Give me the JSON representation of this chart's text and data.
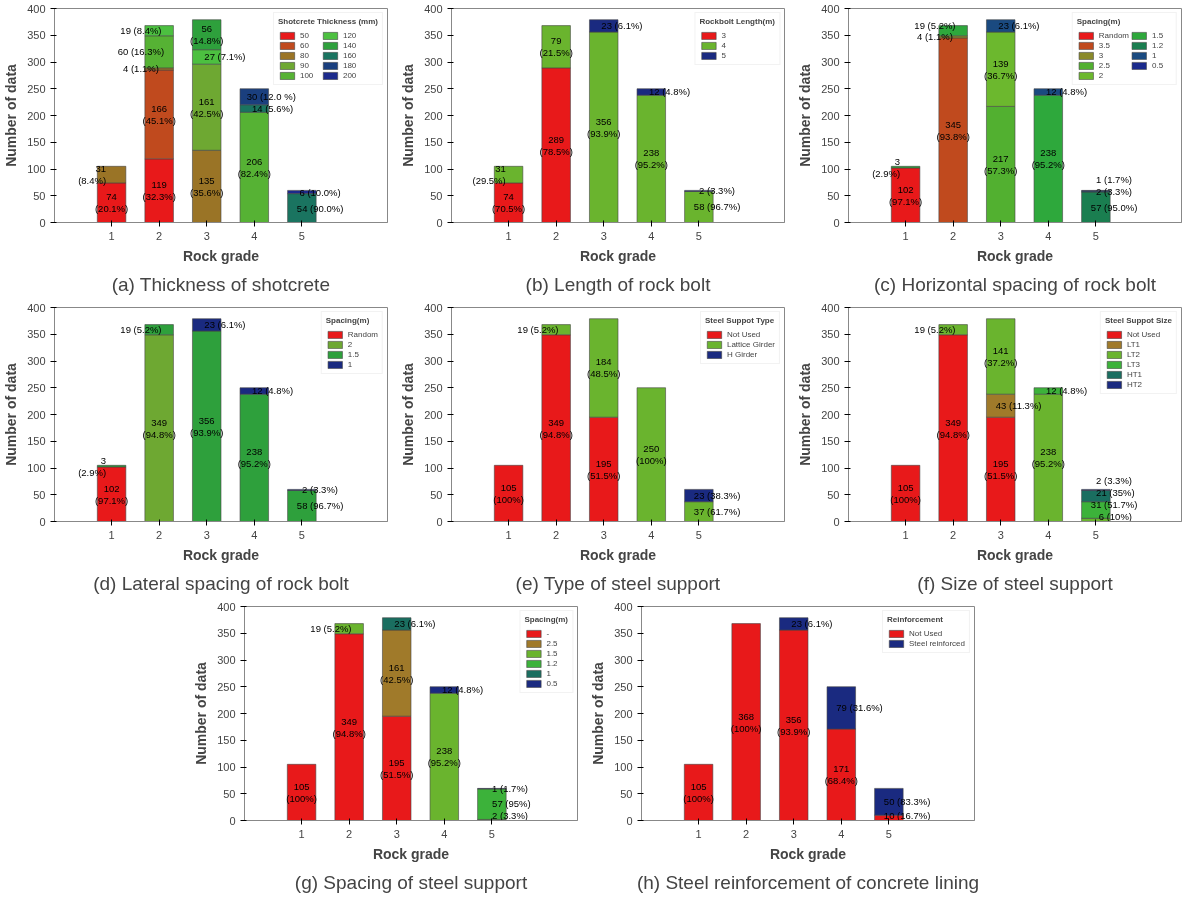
{
  "chart_data": [
    {
      "type": "bar",
      "stacked": true,
      "title": "(a) Thickness of shotcrete",
      "xlabel": "Rock grade",
      "ylabel": "Number of data",
      "legend_title": "Shotcrete Thickness (mm)",
      "legend": "top right",
      "categories": [
        "1",
        "2",
        "3",
        "4",
        "5"
      ],
      "ylim": [
        0,
        400
      ],
      "yticks": [
        0,
        50,
        100,
        150,
        200,
        250,
        300,
        350,
        400
      ],
      "series": [
        {
          "name": "50",
          "color": "#e8191a",
          "values": [
            74,
            119,
            null,
            null,
            null
          ],
          "value_labels": [
            "74 (20.1%)",
            "119 (32.3%)",
            null,
            null,
            null
          ]
        },
        {
          "name": "60",
          "color": "#c04a1e",
          "values": [
            null,
            166,
            null,
            null,
            null
          ],
          "value_labels": [
            null,
            "166 (45.1%)",
            null,
            null,
            null
          ]
        },
        {
          "name": "80",
          "color": "#9a7426",
          "values": [
            31,
            4,
            135,
            null,
            null
          ],
          "value_labels": [
            "31 (8.4%)",
            "4 (1.1%)",
            "135 (35.6%)",
            null,
            null
          ]
        },
        {
          "name": "90",
          "color": "#6ea832",
          "values": [
            null,
            null,
            161,
            null,
            null
          ],
          "value_labels": [
            null,
            null,
            "161 (42.5%)",
            null,
            null
          ]
        },
        {
          "name": "100",
          "color": "#56b234",
          "values": [
            null,
            60,
            null,
            206,
            null
          ],
          "value_labels": [
            null,
            "60 (16.3%)",
            null,
            "206 (82.4%)",
            null
          ]
        },
        {
          "name": "120",
          "color": "#4cc040",
          "values": [
            null,
            19,
            27,
            null,
            null
          ],
          "value_labels": [
            null,
            "19 (8.4%)",
            "27 (7.1%)",
            null,
            null
          ]
        },
        {
          "name": "140",
          "color": "#2ea03c",
          "values": [
            null,
            null,
            56,
            null,
            null
          ],
          "value_labels": [
            null,
            null,
            "56 (14.8%)",
            null,
            null
          ]
        },
        {
          "name": "160",
          "color": "#1a7460",
          "values": [
            null,
            null,
            null,
            14,
            54
          ],
          "value_labels": [
            null,
            null,
            null,
            "14 (5.6%)",
            "54 (90.0%)"
          ]
        },
        {
          "name": "180",
          "color": "#1a3f7e",
          "values": [
            null,
            null,
            null,
            30,
            null
          ],
          "value_labels": [
            null,
            null,
            null,
            "30 (12.0 %)",
            null
          ]
        },
        {
          "name": "200",
          "color": "#1c2a8c",
          "values": [
            null,
            null,
            null,
            null,
            6
          ],
          "value_labels": [
            null,
            null,
            null,
            null,
            "6 (10.0%)"
          ]
        }
      ]
    },
    {
      "type": "bar",
      "stacked": true,
      "title": "(b) Length of rock bolt",
      "xlabel": "Rock grade",
      "ylabel": "Number of data",
      "legend_title": "Rockbolt Length(m)",
      "legend": "top right",
      "categories": [
        "1",
        "2",
        "3",
        "4",
        "5"
      ],
      "ylim": [
        0,
        400
      ],
      "yticks": [
        0,
        50,
        100,
        150,
        200,
        250,
        300,
        350,
        400
      ],
      "series": [
        {
          "name": "3",
          "color": "#e8191a",
          "values": [
            74,
            289,
            null,
            null,
            null
          ],
          "value_labels": [
            "74 (70.5%)",
            "289 (78.5%)",
            null,
            null,
            null
          ]
        },
        {
          "name": "4",
          "color": "#6ab42e",
          "values": [
            31,
            79,
            356,
            238,
            58
          ],
          "value_labels": [
            "31 (29.5%)",
            "79 (21.5%)",
            "356 (93.9%)",
            "238 (95.2%)",
            "58 (96.7%)"
          ]
        },
        {
          "name": "5",
          "color": "#1a2a80",
          "values": [
            null,
            null,
            23,
            12,
            2
          ],
          "value_labels": [
            null,
            null,
            "23 (6.1%)",
            "12 (4.8%)",
            "2 (3.3%)"
          ]
        }
      ]
    },
    {
      "type": "bar",
      "stacked": true,
      "title": "(c) Horizontal spacing of rock bolt",
      "xlabel": "Rock grade",
      "ylabel": "Number of data",
      "legend_title": "Spacing(m)",
      "legend": "top right",
      "categories": [
        "1",
        "2",
        "3",
        "4",
        "5"
      ],
      "ylim": [
        0,
        400
      ],
      "yticks": [
        0,
        50,
        100,
        150,
        200,
        250,
        300,
        350,
        400
      ],
      "series": [
        {
          "name": "Random",
          "color": "#e8191a",
          "values": [
            102,
            null,
            null,
            null,
            null
          ],
          "value_labels": [
            "102 (97.1%)",
            null,
            null,
            null,
            null
          ]
        },
        {
          "name": "3.5",
          "color": "#c04a1e",
          "values": [
            null,
            345,
            null,
            null,
            null
          ],
          "value_labels": [
            null,
            "345 (93.8%)",
            null,
            null,
            null
          ]
        },
        {
          "name": "3",
          "color": "#8a8a2a",
          "values": [
            null,
            4,
            null,
            null,
            null
          ],
          "value_labels": [
            null,
            "4 (1.1%)",
            null,
            null,
            null
          ]
        },
        {
          "name": "2.5",
          "color": "#52b030",
          "values": [
            null,
            null,
            217,
            null,
            null
          ],
          "value_labels": [
            null,
            null,
            "217 (57.3%)",
            null,
            null
          ]
        },
        {
          "name": "2",
          "color": "#6cb82e",
          "values": [
            null,
            null,
            139,
            null,
            null
          ],
          "value_labels": [
            null,
            null,
            "139 (36.7%)",
            null,
            null
          ]
        },
        {
          "name": "1.5",
          "color": "#2ea83c",
          "values": [
            3,
            19,
            null,
            238,
            null
          ],
          "value_labels": [
            "3 (2.9%)",
            "19 (5.2%)",
            null,
            "238 (95.2%)",
            null
          ]
        },
        {
          "name": "1.2",
          "color": "#1a7e50",
          "values": [
            null,
            null,
            null,
            null,
            57
          ],
          "value_labels": [
            null,
            null,
            null,
            null,
            "57 (95.0%)"
          ]
        },
        {
          "name": "1",
          "color": "#1a4a80",
          "values": [
            null,
            null,
            23,
            12,
            2
          ],
          "value_labels": [
            null,
            null,
            "23 (6.1%)",
            "12 (4.8%)",
            "2 (3.3%)"
          ]
        },
        {
          "name": "0.5",
          "color": "#1a2a8c",
          "values": [
            null,
            null,
            null,
            null,
            1
          ],
          "value_labels": [
            null,
            null,
            null,
            null,
            "1 (1.7%)"
          ]
        }
      ]
    },
    {
      "type": "bar",
      "stacked": true,
      "title": "(d) Lateral spacing of rock bolt",
      "xlabel": "Rock grade",
      "ylabel": "Number of data",
      "legend_title": "Spacing(m)",
      "legend": "top right",
      "categories": [
        "1",
        "2",
        "3",
        "4",
        "5"
      ],
      "ylim": [
        0,
        400
      ],
      "yticks": [
        0,
        50,
        100,
        150,
        200,
        250,
        300,
        350,
        400
      ],
      "series": [
        {
          "name": "Random",
          "color": "#e8191a",
          "values": [
            102,
            null,
            null,
            null,
            null
          ],
          "value_labels": [
            "102 (97.1%)",
            null,
            null,
            null,
            null
          ]
        },
        {
          "name": "2",
          "color": "#6ea832",
          "values": [
            null,
            349,
            null,
            null,
            null
          ],
          "value_labels": [
            null,
            "349 (94.8%)",
            null,
            null,
            null
          ]
        },
        {
          "name": "1.5",
          "color": "#2ea03c",
          "values": [
            3,
            19,
            356,
            238,
            58
          ],
          "value_labels": [
            "3 (2.9%)",
            "19 (5.2%)",
            "356 (93.9%)",
            "238 (95.2%)",
            "58 (96.7%)"
          ]
        },
        {
          "name": "1",
          "color": "#1a2a80",
          "values": [
            null,
            null,
            23,
            12,
            2
          ],
          "value_labels": [
            null,
            null,
            "23 (6.1%)",
            "12 (4.8%)",
            "2 (3.3%)"
          ]
        }
      ]
    },
    {
      "type": "bar",
      "stacked": true,
      "title": "(e) Type of steel support",
      "xlabel": "Rock grade",
      "ylabel": "Number of data",
      "legend_title": "Steel Suppot Type",
      "legend": "top right",
      "categories": [
        "1",
        "2",
        "3",
        "4",
        "5"
      ],
      "ylim": [
        0,
        400
      ],
      "yticks": [
        0,
        50,
        100,
        150,
        200,
        250,
        300,
        350,
        400
      ],
      "series": [
        {
          "name": "Not Used",
          "color": "#e8191a",
          "values": [
            105,
            349,
            195,
            null,
            null
          ],
          "value_labels": [
            "105 (100%)",
            "349 (94.8%)",
            "195 (51.5%)",
            null,
            null
          ]
        },
        {
          "name": "Lattice Girder",
          "color": "#6ab42e",
          "values": [
            null,
            19,
            184,
            250,
            37
          ],
          "value_labels": [
            null,
            "19 (5.2%)",
            "184 (48.5%)",
            "250 (100%)",
            "37 (61.7%)"
          ]
        },
        {
          "name": "H Girder",
          "color": "#1a2a80",
          "values": [
            null,
            null,
            null,
            null,
            23
          ],
          "value_labels": [
            null,
            null,
            null,
            null,
            "23 (38.3%)"
          ]
        }
      ]
    },
    {
      "type": "bar",
      "stacked": true,
      "title": "(f) Size of steel support",
      "xlabel": "Rock grade",
      "ylabel": "Number of data",
      "legend_title": "Steel Suppot Size",
      "legend": "top right",
      "categories": [
        "1",
        "2",
        "3",
        "4",
        "5"
      ],
      "ylim": [
        0,
        400
      ],
      "yticks": [
        0,
        50,
        100,
        150,
        200,
        250,
        300,
        350,
        400
      ],
      "series": [
        {
          "name": "Not Used",
          "color": "#e8191a",
          "values": [
            105,
            349,
            195,
            null,
            null
          ],
          "value_labels": [
            "105 (100%)",
            "349 (94.8%)",
            "195 (51.5%)",
            null,
            null
          ]
        },
        {
          "name": "LT1",
          "color": "#a07a2a",
          "values": [
            null,
            null,
            43,
            null,
            null
          ],
          "value_labels": [
            null,
            null,
            "43 (11.3%)",
            null,
            null
          ]
        },
        {
          "name": "LT2",
          "color": "#6ab42e",
          "values": [
            null,
            19,
            141,
            238,
            6
          ],
          "value_labels": [
            null,
            "19 (5.2%)",
            "141 (37.2%)",
            "238 (95.2%)",
            "6 (10%)"
          ]
        },
        {
          "name": "LT3",
          "color": "#3cb23a",
          "values": [
            null,
            null,
            null,
            12,
            31
          ],
          "value_labels": [
            null,
            null,
            null,
            "12 (4.8%)",
            "31 (51.7%)"
          ]
        },
        {
          "name": "HT1",
          "color": "#1a6e60",
          "values": [
            null,
            null,
            null,
            null,
            21
          ],
          "value_labels": [
            null,
            null,
            null,
            null,
            "21 (35%)"
          ]
        },
        {
          "name": "HT2",
          "color": "#1a2a80",
          "values": [
            null,
            null,
            null,
            null,
            2
          ],
          "value_labels": [
            null,
            null,
            null,
            null,
            "2 (3.3%)"
          ]
        }
      ]
    },
    {
      "type": "bar",
      "stacked": true,
      "title": "(g) Spacing of steel support",
      "xlabel": "Rock grade",
      "ylabel": "Number of data",
      "legend_title": "Spacing(m)",
      "legend": "top right",
      "categories": [
        "1",
        "2",
        "3",
        "4",
        "5"
      ],
      "ylim": [
        0,
        400
      ],
      "yticks": [
        0,
        50,
        100,
        150,
        200,
        250,
        300,
        350,
        400
      ],
      "series": [
        {
          "name": "-",
          "color": "#e8191a",
          "values": [
            105,
            349,
            195,
            null,
            null
          ],
          "value_labels": [
            "105 (100%)",
            "349 (94.8%)",
            "195 (51.5%)",
            null,
            null
          ]
        },
        {
          "name": "2.5",
          "color": "#a07a2a",
          "values": [
            null,
            null,
            161,
            null,
            2
          ],
          "value_labels": [
            null,
            null,
            "161 (42.5%)",
            null,
            "2 (3.3%)"
          ]
        },
        {
          "name": "1.5",
          "color": "#6ab42e",
          "values": [
            null,
            19,
            null,
            238,
            null
          ],
          "value_labels": [
            null,
            "19 (5.2%)",
            null,
            "238 (95.2%)",
            null
          ]
        },
        {
          "name": "1.2",
          "color": "#3cb23a",
          "values": [
            null,
            null,
            null,
            null,
            57
          ],
          "value_labels": [
            null,
            null,
            null,
            null,
            "57 (95%)"
          ]
        },
        {
          "name": "1",
          "color": "#1a6e60",
          "values": [
            null,
            null,
            23,
            null,
            null
          ],
          "value_labels": [
            null,
            null,
            "23 (6.1%)",
            null,
            null
          ]
        },
        {
          "name": "0.5",
          "color": "#1a2a80",
          "values": [
            null,
            null,
            null,
            12,
            1
          ],
          "value_labels": [
            null,
            null,
            null,
            "12 (4.8%)",
            "1 (1.7%)"
          ]
        }
      ]
    },
    {
      "type": "bar",
      "stacked": true,
      "title": "(h) Steel reinforcement of concrete lining",
      "xlabel": "Rock grade",
      "ylabel": "Number of data",
      "legend_title": "Reinforcement",
      "legend": "top right",
      "categories": [
        "1",
        "2",
        "3",
        "4",
        "5"
      ],
      "ylim": [
        0,
        400
      ],
      "yticks": [
        0,
        50,
        100,
        150,
        200,
        250,
        300,
        350,
        400
      ],
      "series": [
        {
          "name": "Not Used",
          "color": "#e8191a",
          "values": [
            105,
            368,
            356,
            171,
            10
          ],
          "value_labels": [
            "105 (100%)",
            "368 (100%)",
            "356 (93.9%)",
            "171 (68.4%)",
            "10 (16.7%)"
          ]
        },
        {
          "name": "Steel reinforced",
          "color": "#1a2a80",
          "values": [
            null,
            null,
            23,
            79,
            50
          ],
          "value_labels": [
            null,
            null,
            "23 (6.1%)",
            "79 (31.6%)",
            "50 (83.3%)"
          ]
        }
      ]
    }
  ]
}
